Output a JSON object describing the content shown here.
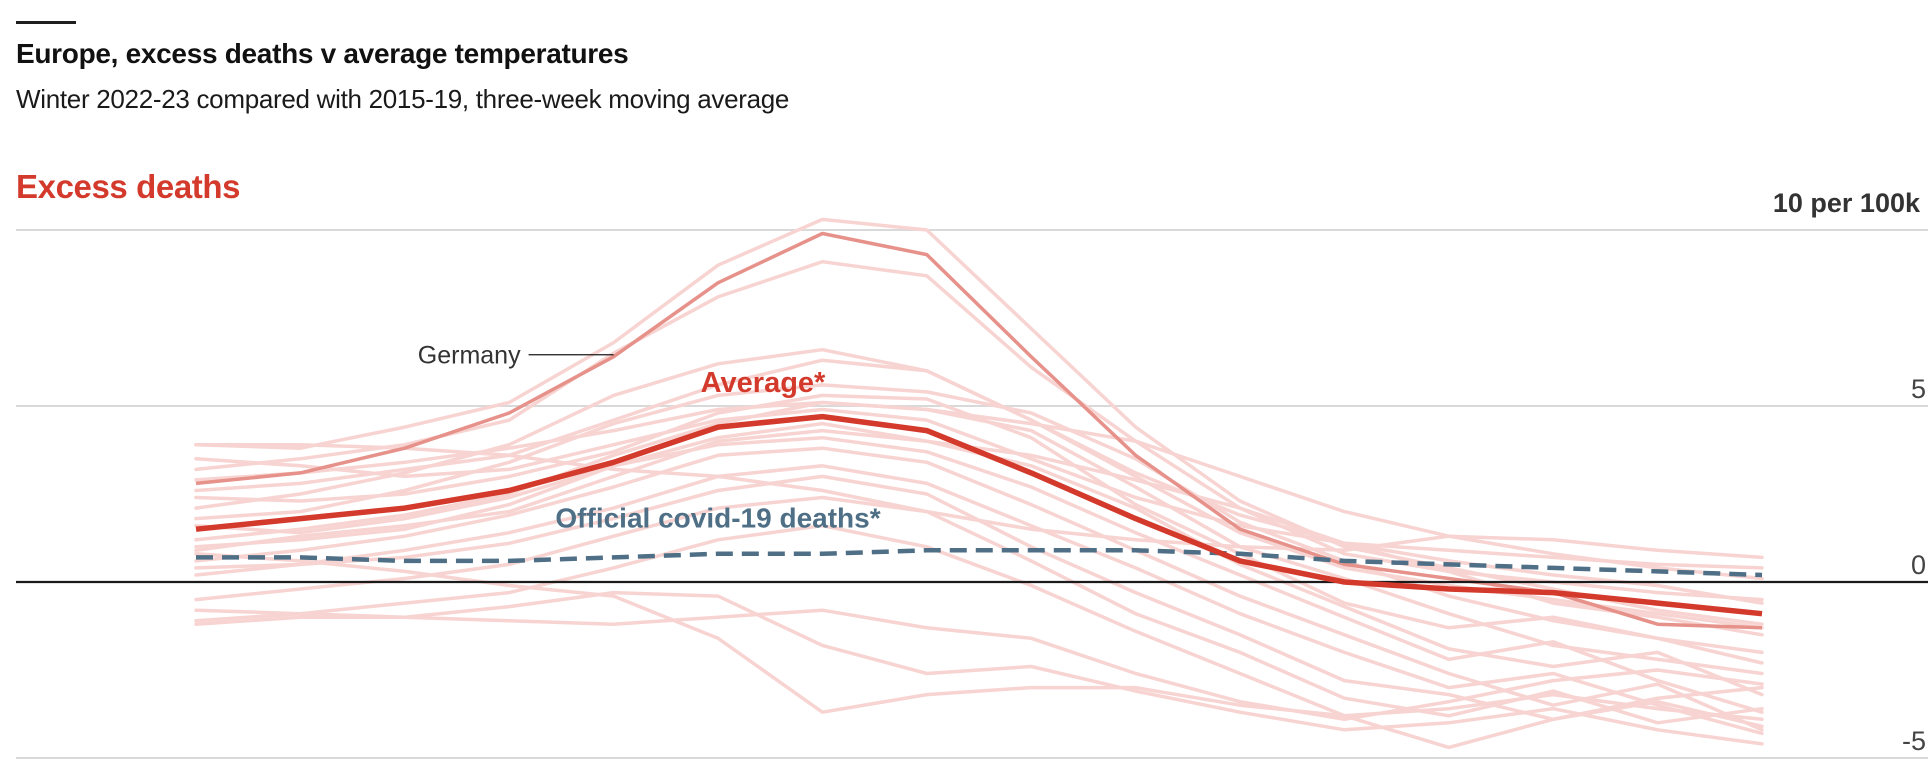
{
  "title": "Europe, excess deaths v average temperatures",
  "subtitle": "Winter 2022-23 compared with 2015-19, three-week moving average",
  "panel_title": "Excess deaths",
  "unit_label": "10 per 100k",
  "colors": {
    "accent_red": "#d33a2c",
    "country_line": "#f7d4d1",
    "germany": "#e6918a",
    "covid": "#4e6f86",
    "zero_line": "#1a1a1a",
    "grid": "#d9d9d9"
  },
  "chart_data": {
    "type": "line",
    "title": "Europe, excess deaths v average temperatures",
    "subtitle": "Winter 2022-23 compared with 2015-19, three-week moving average",
    "ylabel": "Excess deaths",
    "yunit": "10 per 100k",
    "ylim": [
      -5,
      10
    ],
    "yticks": [
      {
        "value": 10,
        "label": ""
      },
      {
        "value": 5,
        "label": "5"
      },
      {
        "value": 0,
        "label": "0"
      },
      {
        "value": -5,
        "label": "-5"
      }
    ],
    "grid": true,
    "x": [
      0,
      1,
      2,
      3,
      4,
      5,
      6,
      7,
      8,
      9,
      10,
      11,
      12,
      13,
      14,
      15
    ],
    "series": [
      {
        "name": "Average*",
        "role": "average",
        "values": [
          1.5,
          1.8,
          2.1,
          2.6,
          3.4,
          4.4,
          4.7,
          4.3,
          3.1,
          1.8,
          0.6,
          0.0,
          -0.2,
          -0.3,
          -0.6,
          -0.9
        ]
      },
      {
        "name": "Official covid-19 deaths*",
        "role": "covid",
        "values": [
          0.7,
          0.7,
          0.6,
          0.6,
          0.7,
          0.8,
          0.8,
          0.9,
          0.9,
          0.9,
          0.8,
          0.6,
          0.5,
          0.4,
          0.3,
          0.2
        ]
      },
      {
        "name": "Germany",
        "role": "germany",
        "values": [
          2.8,
          3.1,
          3.8,
          4.8,
          6.4,
          8.5,
          9.9,
          9.3,
          6.4,
          3.6,
          1.5,
          0.5,
          0.1,
          -0.3,
          -1.2,
          -1.3
        ]
      },
      {
        "role": "country",
        "values": [
          3.9,
          3.8,
          4.4,
          5.1,
          6.8,
          9.0,
          10.3,
          10.0,
          7.2,
          4.4,
          2.3,
          1.0,
          0.4,
          -0.2,
          -0.8,
          -1.2
        ]
      },
      {
        "role": "country",
        "values": [
          3.2,
          3.5,
          3.9,
          4.6,
          6.5,
          8.1,
          9.1,
          8.7,
          6.1,
          4.0,
          2.1,
          0.8,
          0.3,
          -0.6,
          -1.0,
          -1.5
        ]
      },
      {
        "role": "country",
        "values": [
          2.1,
          2.5,
          3.1,
          3.9,
          5.3,
          6.2,
          6.6,
          6.0,
          4.6,
          3.0,
          1.4,
          0.4,
          -0.1,
          -0.5,
          -0.9,
          -1.3
        ]
      },
      {
        "role": "country",
        "values": [
          1.8,
          2.0,
          2.6,
          3.4,
          4.5,
          5.3,
          5.6,
          5.4,
          4.8,
          3.5,
          1.7,
          0.6,
          -0.4,
          -1.1,
          -1.6,
          -2.0
        ]
      },
      {
        "role": "country",
        "values": [
          2.4,
          2.3,
          2.5,
          3.0,
          3.7,
          4.8,
          5.3,
          5.2,
          4.1,
          2.2,
          0.8,
          -0.6,
          -1.3,
          -1.0,
          -1.6,
          -2.3
        ]
      },
      {
        "role": "country",
        "values": [
          1.2,
          1.5,
          1.9,
          2.5,
          3.6,
          4.5,
          5.1,
          4.9,
          4.3,
          2.7,
          1.0,
          0.1,
          -0.9,
          -1.8,
          -2.2,
          -2.6
        ]
      },
      {
        "role": "country",
        "values": [
          0.9,
          1.3,
          1.6,
          2.0,
          3.0,
          4.0,
          4.3,
          4.0,
          3.3,
          2.1,
          0.5,
          -0.7,
          -1.9,
          -2.4,
          -2.0,
          -3.2
        ]
      },
      {
        "role": "country",
        "values": [
          1.6,
          1.4,
          1.8,
          2.4,
          3.3,
          3.9,
          4.1,
          3.7,
          2.7,
          1.4,
          0.2,
          -1.0,
          -2.2,
          -1.7,
          -2.8,
          -3.7
        ]
      },
      {
        "role": "country",
        "values": [
          0.6,
          0.9,
          1.3,
          1.9,
          2.7,
          3.6,
          3.8,
          3.4,
          2.2,
          0.9,
          -0.4,
          -1.5,
          -2.6,
          -3.5,
          -2.9,
          -4.2
        ]
      },
      {
        "role": "country",
        "values": [
          0.4,
          0.5,
          0.9,
          1.4,
          2.1,
          3.0,
          3.3,
          2.8,
          1.6,
          0.4,
          -0.9,
          -2.0,
          -3.0,
          -2.6,
          -3.5,
          -4.3
        ]
      },
      {
        "role": "country",
        "values": [
          0.2,
          0.5,
          0.7,
          1.1,
          1.8,
          2.6,
          3.0,
          2.5,
          1.0,
          -0.3,
          -1.5,
          -2.8,
          -3.2,
          -3.9,
          -3.3,
          -3.0
        ]
      },
      {
        "role": "country",
        "values": [
          -0.5,
          -0.2,
          0.1,
          0.5,
          1.3,
          2.1,
          2.4,
          2.0,
          0.6,
          -0.9,
          -2.0,
          -3.3,
          -3.8,
          -3.1,
          -4.0,
          -3.6
        ]
      },
      {
        "role": "country",
        "values": [
          -1.1,
          -0.9,
          -0.6,
          -0.3,
          0.4,
          1.2,
          1.6,
          1.0,
          -0.1,
          -1.4,
          -2.6,
          -3.8,
          -4.7,
          -3.9,
          -3.4,
          -4.1
        ]
      },
      {
        "role": "country",
        "values": [
          -1.2,
          -1.0,
          -1.0,
          -1.1,
          -1.2,
          -1.0,
          -0.8,
          -1.3,
          -1.6,
          -2.6,
          -3.4,
          -3.9,
          -3.4,
          -2.8,
          -2.5,
          -2.9
        ]
      },
      {
        "role": "country",
        "values": [
          -0.8,
          -0.9,
          -1.0,
          -0.7,
          -0.3,
          -0.4,
          -1.8,
          -2.6,
          -2.4,
          -3.1,
          -3.7,
          -4.2,
          -4.0,
          -3.6,
          -4.2,
          -4.6
        ]
      },
      {
        "role": "country",
        "values": [
          3.9,
          3.9,
          3.8,
          3.6,
          3.2,
          3.0,
          2.6,
          2.0,
          1.5,
          1.2,
          1.0,
          0.9,
          1.3,
          1.2,
          0.9,
          0.7
        ]
      },
      {
        "role": "country",
        "values": [
          3.5,
          3.3,
          3.0,
          3.2,
          3.9,
          4.6,
          4.9,
          4.6,
          3.5,
          2.4,
          1.6,
          1.1,
          0.9,
          0.7,
          0.5,
          0.4
        ]
      },
      {
        "role": "country",
        "values": [
          2.9,
          3.1,
          3.4,
          3.8,
          4.3,
          4.9,
          5.1,
          4.9,
          4.5,
          4.0,
          3.0,
          2.0,
          1.3,
          0.8,
          0.4,
          0.1
        ]
      },
      {
        "role": "country",
        "values": [
          1.0,
          1.2,
          1.5,
          2.2,
          3.3,
          4.1,
          4.5,
          4.0,
          3.6,
          2.9,
          2.1,
          1.1,
          0.3,
          0.0,
          -0.3,
          -0.5
        ]
      },
      {
        "role": "country",
        "values": [
          0.8,
          0.6,
          0.3,
          -0.1,
          -0.4,
          -1.6,
          -3.7,
          -3.2,
          -3.0,
          -3.0,
          -3.5,
          -3.8,
          -3.6,
          -3.2,
          -3.6,
          -3.9
        ]
      },
      {
        "role": "country",
        "values": [
          2.6,
          2.8,
          3.2,
          3.6,
          4.6,
          5.6,
          6.3,
          6.0,
          4.6,
          3.1,
          1.9,
          1.1,
          0.6,
          0.2,
          -0.1,
          -0.6
        ]
      }
    ]
  },
  "annotations": {
    "germany_label": "Germany",
    "average_label": "Average*",
    "covid_label": "Official covid-19 deaths*"
  }
}
